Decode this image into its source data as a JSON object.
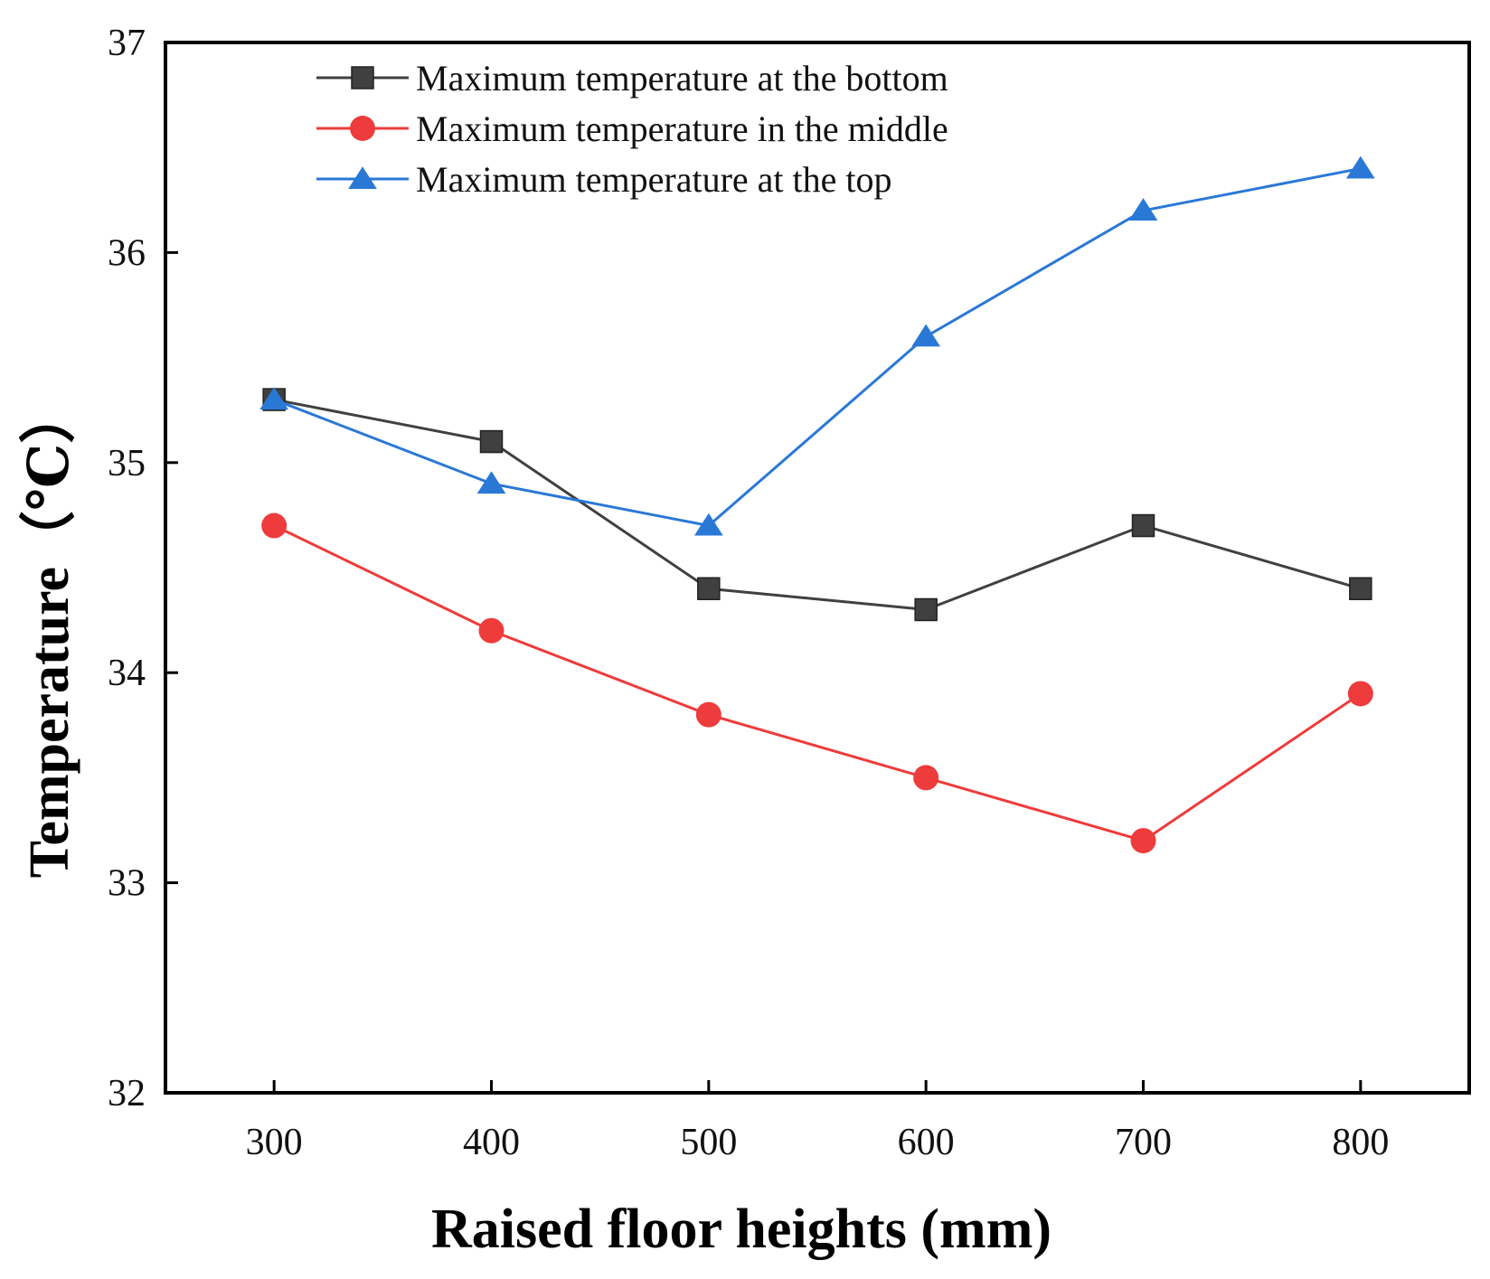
{
  "chart_data": {
    "type": "line",
    "title": "",
    "xlabel": "Raised floor heights (mm)",
    "ylabel": "Temperature（℃）",
    "x": [
      300,
      400,
      500,
      600,
      700,
      800
    ],
    "xlim": [
      250,
      850
    ],
    "ylim": [
      32,
      37
    ],
    "xticks": [
      300,
      400,
      500,
      600,
      700,
      800
    ],
    "yticks": [
      32,
      33,
      34,
      35,
      36,
      37
    ],
    "grid": false,
    "legend_position": "top-center",
    "series": [
      {
        "name": "Maximum temperature at the bottom",
        "color": "#404040",
        "marker": "square",
        "values": [
          35.3,
          35.1,
          34.4,
          34.3,
          34.7,
          34.4
        ]
      },
      {
        "name": "Maximum temperature in the middle",
        "color": "#ee3b3b",
        "marker": "circle",
        "values": [
          34.7,
          34.2,
          33.8,
          33.5,
          33.2,
          33.9
        ]
      },
      {
        "name": "Maximum temperature at the top",
        "color": "#2a78d6",
        "marker": "triangle",
        "values": [
          35.3,
          34.9,
          34.7,
          35.6,
          36.2,
          36.4
        ]
      }
    ]
  }
}
